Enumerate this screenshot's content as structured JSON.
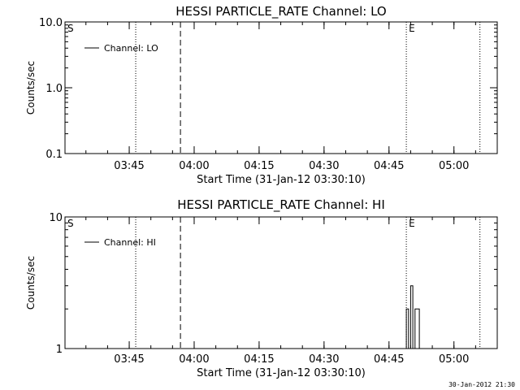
{
  "footer_stamp": "30-Jan-2012 21:30",
  "chart_data": [
    {
      "type": "line",
      "title": "HESSI PARTICLE_RATE Channel: LO",
      "xlabel": "Start Time (31-Jan-12 03:30:10)",
      "ylabel": "Counts/sec",
      "xlim": [
        "03:30:10",
        "05:10:00"
      ],
      "ylim": [
        0.1,
        10.0
      ],
      "yscale": "log",
      "xticks": [
        "03:45",
        "04:00",
        "04:15",
        "04:30",
        "04:45",
        "05:00"
      ],
      "yticks": [
        "0.1",
        "1.0",
        "10.0"
      ],
      "grid": false,
      "legend": {
        "position": "top-left",
        "entries": [
          "Channel: LO"
        ]
      },
      "markers": [
        {
          "label": "S",
          "time": "03:30:10",
          "style": "text"
        },
        {
          "label": "",
          "time": "03:46:30",
          "style": "dotted"
        },
        {
          "label": "",
          "time": "03:56:50",
          "style": "dashed"
        },
        {
          "label": "E",
          "time": "04:49:00",
          "style": "dotted"
        },
        {
          "label": "",
          "time": "05:06:00",
          "style": "dotted"
        }
      ],
      "series": [
        {
          "name": "Channel: LO",
          "points": []
        }
      ]
    },
    {
      "type": "line",
      "title": "HESSI PARTICLE_RATE Channel: HI",
      "xlabel": "Start Time (31-Jan-12 03:30:10)",
      "ylabel": "Counts/sec",
      "xlim": [
        "03:30:10",
        "05:10:00"
      ],
      "ylim": [
        1,
        10
      ],
      "yscale": "log",
      "xticks": [
        "03:45",
        "04:00",
        "04:15",
        "04:30",
        "04:45",
        "05:00"
      ],
      "yticks": [
        "1",
        "10"
      ],
      "grid": false,
      "legend": {
        "position": "top-left",
        "entries": [
          "Channel: HI"
        ]
      },
      "markers": [
        {
          "label": "S",
          "time": "03:30:10",
          "style": "text"
        },
        {
          "label": "",
          "time": "03:46:30",
          "style": "dotted"
        },
        {
          "label": "",
          "time": "03:56:50",
          "style": "dashed"
        },
        {
          "label": "E",
          "time": "04:49:00",
          "style": "dotted"
        },
        {
          "label": "",
          "time": "05:06:00",
          "style": "dotted"
        }
      ],
      "series": [
        {
          "name": "Channel: HI",
          "points": [
            {
              "x": "04:49:00",
              "y": 1
            },
            {
              "x": "04:49:00",
              "y": 2
            },
            {
              "x": "04:49:30",
              "y": 2
            },
            {
              "x": "04:49:30",
              "y": 1
            },
            {
              "x": "04:50:00",
              "y": 1
            },
            {
              "x": "04:50:00",
              "y": 3
            },
            {
              "x": "04:50:30",
              "y": 3
            },
            {
              "x": "04:50:30",
              "y": 1
            },
            {
              "x": "04:51:00",
              "y": 1
            },
            {
              "x": "04:51:00",
              "y": 2
            },
            {
              "x": "04:52:00",
              "y": 2
            },
            {
              "x": "04:52:00",
              "y": 1
            }
          ]
        }
      ]
    }
  ]
}
